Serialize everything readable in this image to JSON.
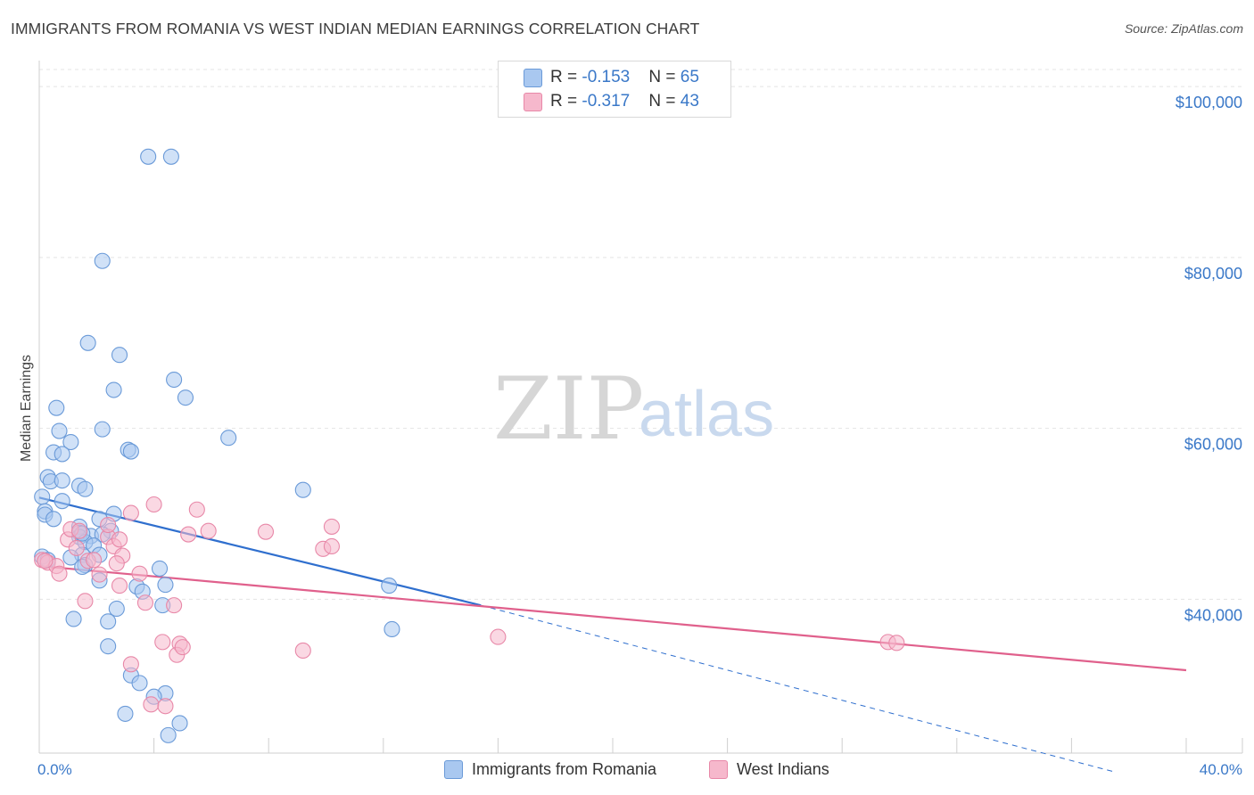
{
  "title": "IMMIGRANTS FROM ROMANIA VS WEST INDIAN MEDIAN EARNINGS CORRELATION CHART",
  "source": "Source: ZipAtlas.com",
  "watermark": {
    "zip": "ZIP",
    "atlas": "atlas"
  },
  "legend": {
    "rows": [
      {
        "r_label": "R = ",
        "r_value": "-0.153",
        "n_label": "N = ",
        "n_value": "65",
        "color": "#a9c8f0"
      },
      {
        "r_label": "R = ",
        "r_value": "-0.317",
        "n_label": "N = ",
        "n_value": "43",
        "color": "#f6b8cc"
      }
    ]
  },
  "bottom_legend": [
    {
      "label": "Immigrants from Romania",
      "color": "#a9c8f0"
    },
    {
      "label": "West Indians",
      "color": "#f6b8cc"
    }
  ],
  "chart_data": {
    "type": "scatter",
    "title": "IMMIGRANTS FROM ROMANIA VS WEST INDIAN MEDIAN EARNINGS CORRELATION CHART",
    "xlabel": "",
    "ylabel": "Median Earnings",
    "xlim": [
      0,
      40
    ],
    "ylim": [
      22000,
      102000
    ],
    "x_tick_labels": [
      {
        "value": 0,
        "label": "0.0%"
      },
      {
        "value": 40,
        "label": "40.0%"
      }
    ],
    "y_ticks": [
      {
        "value": 40000,
        "label": "$40,000"
      },
      {
        "value": 60000,
        "label": "$60,000"
      },
      {
        "value": 80000,
        "label": "$80,000"
      },
      {
        "value": 100000,
        "label": "$100,000"
      }
    ],
    "grid": true,
    "legend_position": "top-center",
    "series": [
      {
        "name": "Immigrants from Romania",
        "color": "#a9c8f0",
        "stroke": "#6a9ad8",
        "line_color": "#2f6fce",
        "trend": {
          "x0": 0,
          "y0": 51900,
          "x1": 15.4,
          "y1": 39300,
          "dash_to_x": 37.5,
          "dash_to_y": 19800
        },
        "points": [
          [
            3.8,
            91800
          ],
          [
            4.6,
            91800
          ],
          [
            2.2,
            79600
          ],
          [
            1.7,
            70000
          ],
          [
            2.8,
            68600
          ],
          [
            4.7,
            65700
          ],
          [
            2.6,
            64500
          ],
          [
            5.1,
            63600
          ],
          [
            0.6,
            62400
          ],
          [
            0.7,
            59700
          ],
          [
            2.2,
            59900
          ],
          [
            6.6,
            58900
          ],
          [
            1.1,
            58400
          ],
          [
            0.5,
            57200
          ],
          [
            0.8,
            57000
          ],
          [
            3.1,
            57500
          ],
          [
            3.2,
            57300
          ],
          [
            0.3,
            54300
          ],
          [
            0.4,
            53800
          ],
          [
            0.8,
            53900
          ],
          [
            1.4,
            53300
          ],
          [
            1.6,
            52900
          ],
          [
            9.2,
            52800
          ],
          [
            0.1,
            52000
          ],
          [
            0.8,
            51500
          ],
          [
            0.2,
            50300
          ],
          [
            0.2,
            49900
          ],
          [
            2.6,
            50000
          ],
          [
            0.5,
            49400
          ],
          [
            2.1,
            49400
          ],
          [
            1.4,
            48500
          ],
          [
            2.5,
            48000
          ],
          [
            1.4,
            47800
          ],
          [
            1.8,
            47400
          ],
          [
            2.2,
            47600
          ],
          [
            1.4,
            47300
          ],
          [
            1.6,
            46700
          ],
          [
            1.9,
            46300
          ],
          [
            1.5,
            45200
          ],
          [
            1.1,
            44900
          ],
          [
            2.1,
            45200
          ],
          [
            1.6,
            44000
          ],
          [
            1.5,
            43800
          ],
          [
            4.2,
            43600
          ],
          [
            2.1,
            42200
          ],
          [
            3.4,
            41500
          ],
          [
            4.4,
            41700
          ],
          [
            3.6,
            40900
          ],
          [
            12.2,
            41600
          ],
          [
            4.3,
            39300
          ],
          [
            2.7,
            38900
          ],
          [
            1.2,
            37700
          ],
          [
            2.4,
            37400
          ],
          [
            12.3,
            36500
          ],
          [
            2.4,
            34500
          ],
          [
            3.2,
            31100
          ],
          [
            3.5,
            30200
          ],
          [
            4.4,
            29000
          ],
          [
            4.0,
            28600
          ],
          [
            3.0,
            26600
          ],
          [
            4.9,
            25500
          ],
          [
            4.5,
            24100
          ],
          [
            0.1,
            45000
          ],
          [
            0.3,
            44600
          ],
          [
            1.5,
            47700
          ]
        ]
      },
      {
        "name": "West Indians",
        "color": "#f6b8cc",
        "stroke": "#e888a8",
        "line_color": "#e0608c",
        "trend": {
          "x0": 0,
          "y0": 43900,
          "x1": 40,
          "y1": 31700
        },
        "points": [
          [
            0.1,
            44600
          ],
          [
            0.3,
            44300
          ],
          [
            0.6,
            43900
          ],
          [
            0.7,
            43000
          ],
          [
            1.0,
            47000
          ],
          [
            1.1,
            48200
          ],
          [
            1.4,
            48000
          ],
          [
            1.7,
            44500
          ],
          [
            1.9,
            44600
          ],
          [
            1.6,
            39800
          ],
          [
            2.1,
            42900
          ],
          [
            2.4,
            47300
          ],
          [
            2.4,
            48700
          ],
          [
            2.6,
            46200
          ],
          [
            2.8,
            47000
          ],
          [
            2.9,
            45100
          ],
          [
            3.2,
            50100
          ],
          [
            3.5,
            43000
          ],
          [
            4.0,
            51100
          ],
          [
            3.7,
            39600
          ],
          [
            2.8,
            41600
          ],
          [
            3.2,
            32400
          ],
          [
            4.3,
            35000
          ],
          [
            4.7,
            39300
          ],
          [
            4.9,
            34800
          ],
          [
            4.8,
            33500
          ],
          [
            5.0,
            34400
          ],
          [
            5.2,
            47600
          ],
          [
            5.5,
            50500
          ],
          [
            5.9,
            48000
          ],
          [
            7.9,
            47900
          ],
          [
            10.2,
            48500
          ],
          [
            9.9,
            45900
          ],
          [
            10.2,
            46200
          ],
          [
            9.2,
            34000
          ],
          [
            16.0,
            35600
          ],
          [
            29.6,
            35000
          ],
          [
            29.9,
            34900
          ],
          [
            3.9,
            27700
          ],
          [
            4.4,
            27500
          ],
          [
            2.7,
            44200
          ],
          [
            0.2,
            44500
          ],
          [
            1.3,
            46000
          ]
        ]
      }
    ]
  }
}
